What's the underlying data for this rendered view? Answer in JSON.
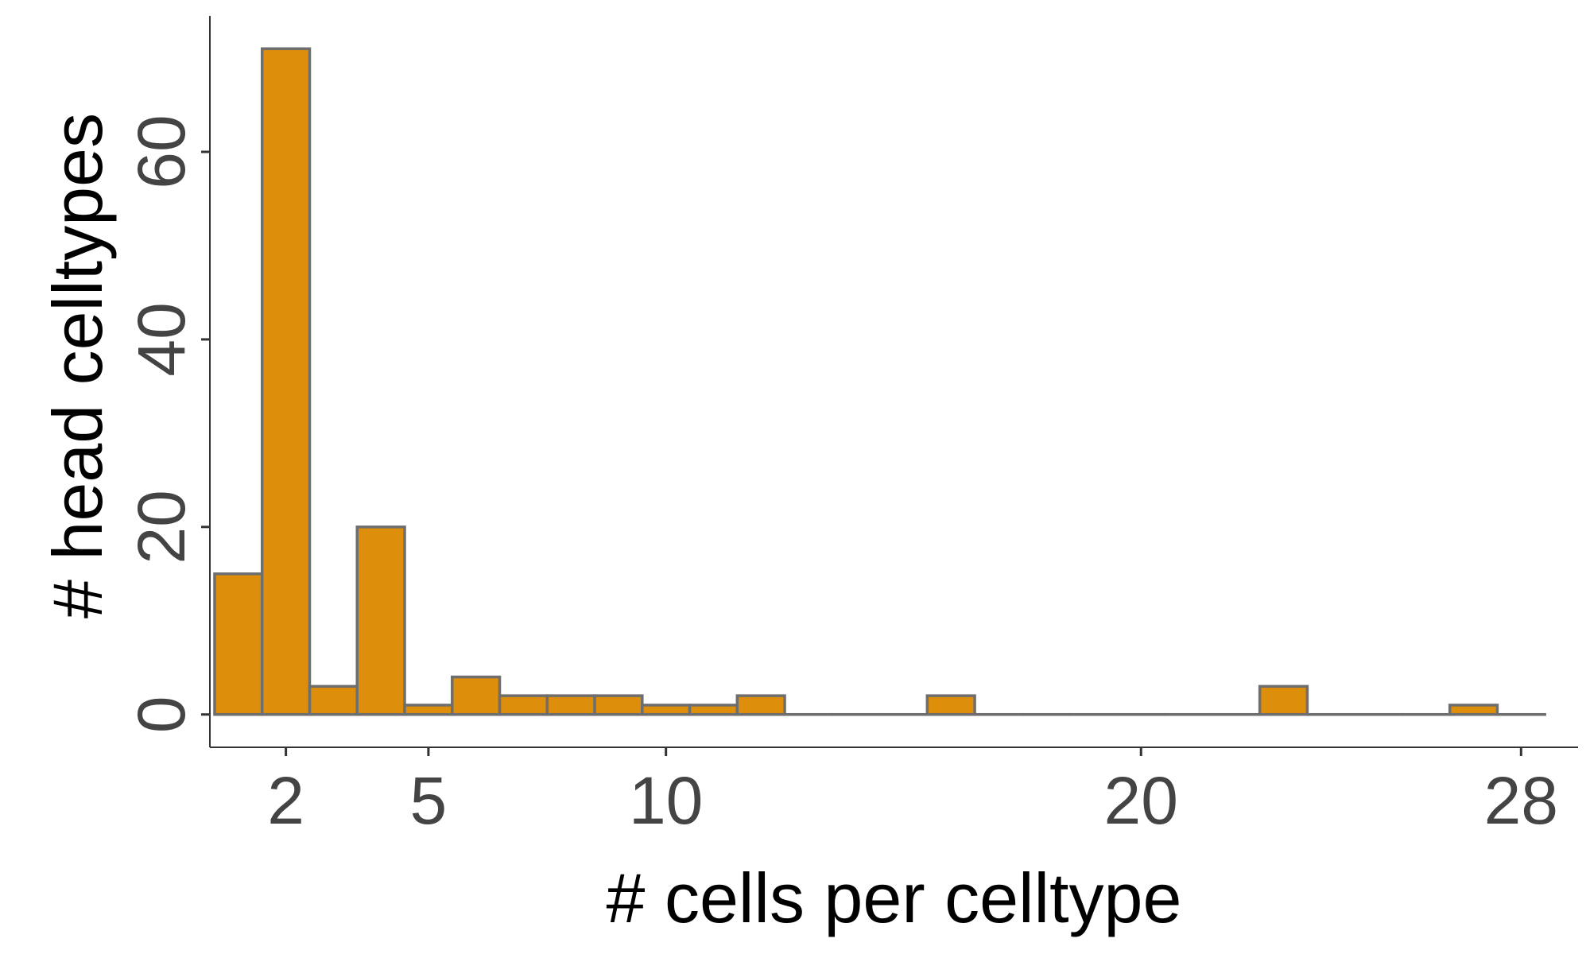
{
  "chart_data": {
    "type": "bar",
    "title": "",
    "xlabel": "# cells per celltype",
    "ylabel": "# head celltypes",
    "x": [
      1,
      2,
      3,
      4,
      5,
      6,
      7,
      8,
      9,
      10,
      11,
      12,
      13,
      14,
      15,
      16,
      17,
      18,
      19,
      20,
      21,
      22,
      23,
      24,
      25,
      26,
      27,
      28
    ],
    "values": [
      15,
      71,
      3,
      20,
      1,
      4,
      2,
      2,
      2,
      1,
      1,
      2,
      0,
      0,
      0,
      2,
      0,
      0,
      0,
      0,
      0,
      0,
      3,
      0,
      0,
      0,
      1,
      0
    ],
    "x_ticks": [
      2,
      5,
      10,
      20,
      28
    ],
    "y_ticks": [
      0,
      20,
      40,
      60
    ],
    "ylim": [
      -3.5,
      74.5
    ],
    "xlim": [
      0.4,
      29.2
    ],
    "x_scale": "linear",
    "grid": false,
    "legend": "none",
    "colors": {
      "bar_fill": "#DD8E0A",
      "bar_stroke": "#6E6E6E",
      "axis": "#333333",
      "tick_label": "#444444",
      "title": "#000000"
    }
  }
}
